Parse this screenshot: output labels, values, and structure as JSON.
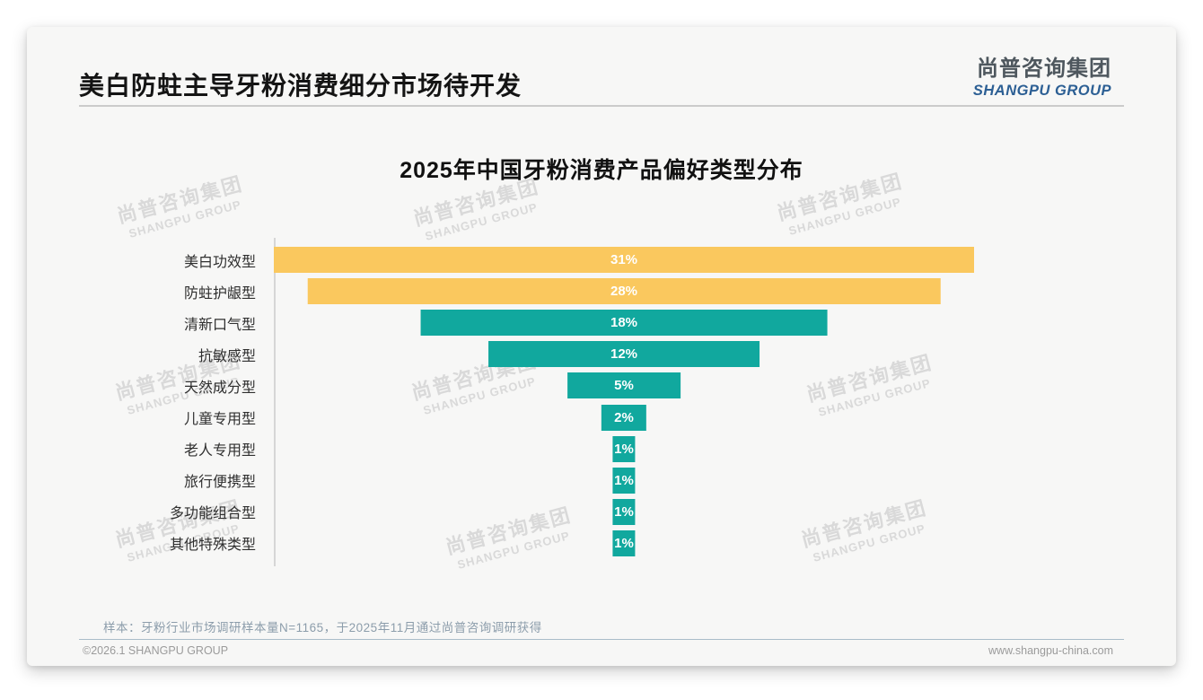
{
  "page": {
    "title": "美白防蛀主导牙粉消费细分市场待开发",
    "logo": {
      "cn": "尚普咨询集团",
      "en": "SHANGPU GROUP"
    },
    "watermark": {
      "cn": "尚普咨询集团",
      "en": "SHANGPU GROUP"
    },
    "footer": {
      "sample_note": "样本：牙粉行业市场调研样本量N=1165，于2025年11月通过尚普咨询调研获得",
      "copyright": "©2026.1 SHANGPU GROUP",
      "website": "www.shangpu-china.com"
    }
  },
  "chart_data": {
    "type": "bar",
    "orientation": "horizontal-centered-funnel",
    "title": "2025年中国牙粉消费产品偏好类型分布",
    "categories": [
      "美白功效型",
      "防蛀护龈型",
      "清新口气型",
      "抗敏感型",
      "天然成分型",
      "儿童专用型",
      "老人专用型",
      "旅行便携型",
      "多功能组合型",
      "其他特殊类型"
    ],
    "values": [
      31,
      28,
      18,
      12,
      5,
      2,
      1,
      1,
      1,
      1
    ],
    "value_labels": [
      "31%",
      "28%",
      "18%",
      "12%",
      "5%",
      "2%",
      "1%",
      "1%",
      "1%",
      "1%"
    ],
    "unit": "%",
    "xlim": [
      0,
      31
    ],
    "grid": "off",
    "legend": "none",
    "colors": {
      "highlight": "#FAC85E",
      "default": "#11A89E",
      "highlight_count": 2,
      "value_label": "#ffffff"
    }
  }
}
